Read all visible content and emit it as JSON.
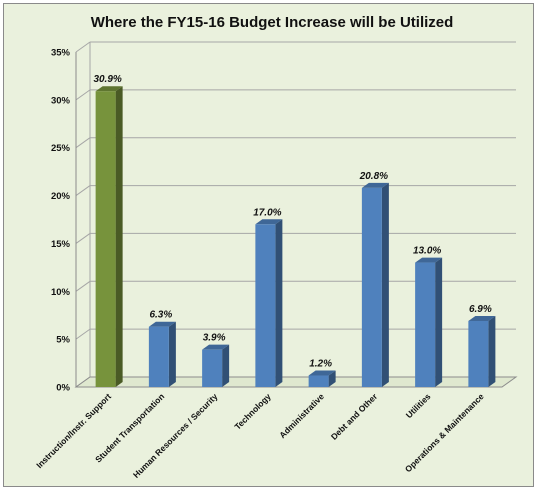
{
  "chart_data": {
    "type": "bar",
    "title": "Where the FY15-16 Budget Increase will be Utilized",
    "categories": [
      "Instruction/Instr. Support",
      "Student Transportation",
      "Human Resources / Security",
      "Technology",
      "Administrative",
      "Debt and Other",
      "Utilities",
      "Operations & Maintenance"
    ],
    "values": [
      30.9,
      6.3,
      3.9,
      17.0,
      1.2,
      20.8,
      13.0,
      6.9
    ],
    "value_labels": [
      "30.9%",
      "6.3%",
      "3.9%",
      "17.0%",
      "1.2%",
      "20.8%",
      "13.0%",
      "6.9%"
    ],
    "y_ticks": [
      0,
      5,
      10,
      15,
      20,
      25,
      30,
      35
    ],
    "y_tick_labels": [
      "0%",
      "5%",
      "10%",
      "15%",
      "20%",
      "25%",
      "30%",
      "35%"
    ],
    "ylim": [
      0,
      35
    ],
    "grid": true,
    "legend": "none",
    "colors": {
      "highlight_bar": "#77933c",
      "bar": "#4f81bd",
      "background": "#eaf1dd",
      "gridline": "#a6a6a6"
    },
    "highlight_index": 0
  }
}
